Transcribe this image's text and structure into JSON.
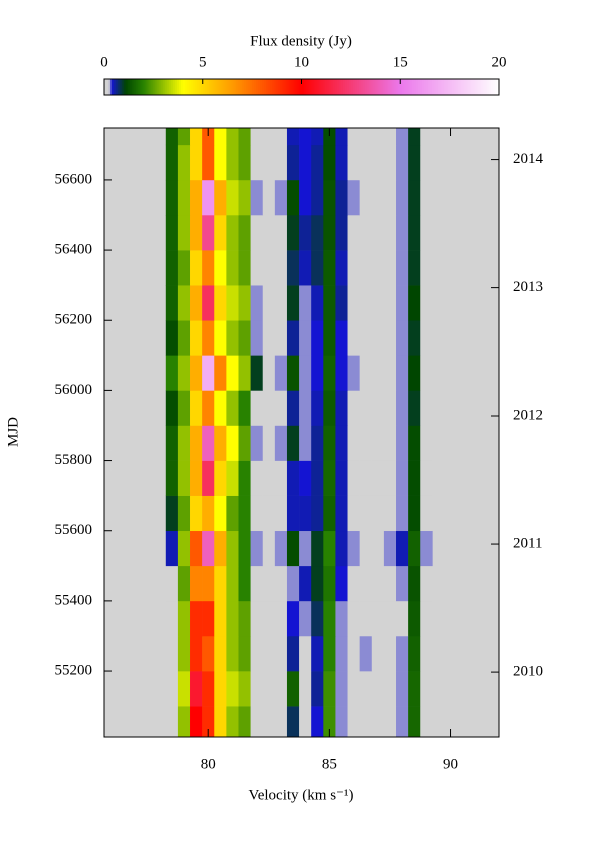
{
  "chart_data": {
    "type": "heatmap",
    "xlabel": "Velocity (km s⁻¹)",
    "ylabel": "MJD",
    "xlim": [
      75.7,
      92
    ],
    "xticks": [
      80,
      85,
      90
    ],
    "ylim": [
      55012,
      56748
    ],
    "yticks": [
      55200,
      55400,
      55600,
      55800,
      56000,
      56200,
      56400,
      56600
    ],
    "y2lim": [
      55012,
      56748
    ],
    "y2ticks": [
      {
        "value": 55197,
        "label": "2010"
      },
      {
        "value": 55562,
        "label": "2011"
      },
      {
        "value": 55927,
        "label": "2012"
      },
      {
        "value": 56293,
        "label": "2013"
      },
      {
        "value": 56658,
        "label": "2014"
      }
    ],
    "colorbar": {
      "title": "Flux density (Jy)",
      "lim": [
        0,
        20
      ],
      "ticks": [
        0,
        5,
        10,
        15,
        20
      ]
    },
    "x": [
      78.5,
      79,
      79.5,
      80,
      80.5,
      81,
      81.5,
      82,
      82.5,
      83,
      83.5,
      84,
      84.5,
      85,
      85.5,
      86,
      86.5,
      87,
      87.5,
      88,
      88.5,
      89
    ],
    "y": [
      55050,
      55150,
      55250,
      55350,
      55450,
      55550,
      55650,
      55750,
      55850,
      55950,
      56050,
      56150,
      56250,
      56350,
      56450,
      56550,
      56650,
      56750
    ],
    "z": [
      [
        0,
        3,
        10,
        9,
        5,
        3,
        2.5,
        0,
        0,
        0,
        0.8,
        0,
        0.4,
        2.2,
        0.3,
        0,
        0,
        0,
        0,
        0.3,
        1.6,
        0
      ],
      [
        0,
        3.5,
        11,
        9,
        5,
        3.5,
        3,
        0,
        0,
        0,
        1.5,
        0,
        0.6,
        2.2,
        0.3,
        0,
        0,
        0,
        0,
        0.3,
        1.6,
        0
      ],
      [
        0,
        3,
        9,
        8,
        5,
        3,
        2.5,
        0,
        0,
        0,
        0.6,
        0.2,
        0.5,
        2,
        0.3,
        0,
        0.3,
        0,
        0,
        0.3,
        1.5,
        0
      ],
      [
        0,
        3,
        9,
        9,
        5,
        3,
        2.5,
        0,
        0,
        0,
        0.4,
        0.3,
        0.8,
        2,
        0.3,
        0,
        0,
        0,
        0,
        0.2,
        1.4,
        0
      ],
      [
        0,
        2.5,
        7,
        7,
        5,
        3,
        2,
        0,
        0,
        0,
        0.3,
        0.5,
        1,
        1.8,
        0.4,
        0,
        0,
        0,
        0,
        0.3,
        1.3,
        0
      ],
      [
        0.5,
        3,
        8,
        14,
        6,
        3,
        2,
        0.3,
        0,
        0.3,
        1.2,
        0.3,
        1,
        2,
        0.5,
        0.3,
        0,
        0,
        0.3,
        0.5,
        1.5,
        0.3
      ],
      [
        1,
        2.5,
        5,
        6,
        4,
        2.5,
        2,
        0,
        0,
        0,
        0.5,
        0.5,
        0.6,
        1.5,
        0.5,
        0,
        0,
        0,
        0,
        0.3,
        1.2,
        0
      ],
      [
        1.5,
        3,
        6,
        12,
        5,
        3.5,
        2,
        0.2,
        0,
        0,
        0.5,
        0.4,
        0.6,
        1.6,
        0.5,
        0,
        0,
        0,
        0,
        0.3,
        1.2,
        0
      ],
      [
        1.5,
        3,
        6,
        14,
        6,
        4,
        2.5,
        0.3,
        0,
        0.3,
        1,
        0.3,
        0.6,
        1.5,
        0.5,
        0,
        0,
        0,
        0,
        0.3,
        1.2,
        0
      ],
      [
        1.2,
        2.5,
        5,
        7,
        4,
        3,
        2,
        0.2,
        0,
        0,
        0.6,
        0.3,
        0.5,
        1.4,
        0.5,
        0,
        0,
        0,
        0,
        0.3,
        1,
        0
      ],
      [
        2,
        3,
        6,
        17,
        7,
        4,
        3,
        1,
        0,
        0.3,
        1.3,
        0.3,
        0.4,
        1.5,
        0.4,
        0.3,
        0,
        0,
        0,
        0.3,
        1.1,
        0
      ],
      [
        1.2,
        2.5,
        5,
        7,
        4,
        3,
        2.5,
        0.3,
        0,
        0,
        0.6,
        0.3,
        0.4,
        1.4,
        0.4,
        0,
        0,
        0,
        0,
        0.3,
        1,
        0
      ],
      [
        1.5,
        3,
        6,
        12,
        5,
        3.5,
        3,
        0.3,
        0,
        0,
        1,
        0.3,
        0.5,
        1.4,
        0.6,
        0,
        0,
        0,
        0,
        0.3,
        1.1,
        0
      ],
      [
        1.5,
        2.5,
        5,
        7,
        4,
        3,
        2.5,
        0.2,
        0,
        0,
        0.8,
        0.5,
        0.8,
        1.4,
        0.5,
        0,
        0,
        0,
        0,
        0.3,
        1,
        0
      ],
      [
        1.5,
        3,
        6,
        13,
        5,
        3,
        2.5,
        0.2,
        0,
        0,
        1,
        0.6,
        0.8,
        1.3,
        0.6,
        0,
        0,
        0,
        0,
        0.3,
        1,
        0
      ],
      [
        1.5,
        3,
        6,
        16,
        6,
        3.5,
        3,
        0.3,
        0,
        0.3,
        1.2,
        0.4,
        0.6,
        1.3,
        0.6,
        0.3,
        0,
        0,
        0,
        0.3,
        1,
        0
      ],
      [
        1.5,
        3,
        5,
        8,
        4,
        3,
        2.5,
        0.2,
        0,
        0,
        0.6,
        0.4,
        0.6,
        1.2,
        0.5,
        0,
        0,
        0,
        0,
        0.3,
        1,
        0
      ],
      [
        1.5,
        2.5,
        5,
        8,
        4,
        3,
        2.5,
        0,
        0,
        0,
        0.5,
        0.4,
        0.5,
        1.2,
        0.5,
        0,
        0,
        0,
        0,
        0.3,
        1,
        0
      ]
    ]
  }
}
